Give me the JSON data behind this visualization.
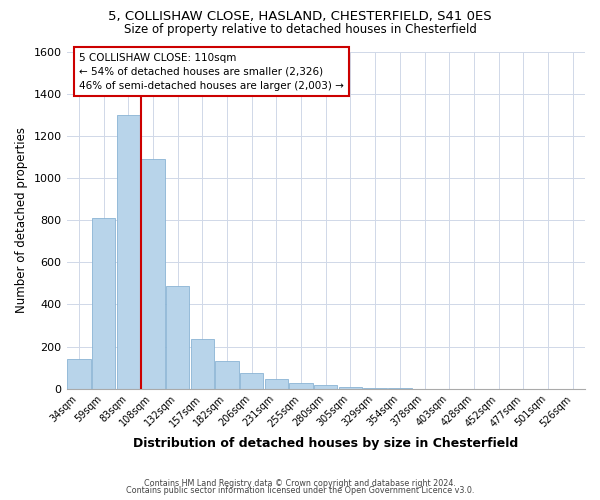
{
  "title1": "5, COLLISHAW CLOSE, HASLAND, CHESTERFIELD, S41 0ES",
  "title2": "Size of property relative to detached houses in Chesterfield",
  "xlabel": "Distribution of detached houses by size in Chesterfield",
  "ylabel": "Number of detached properties",
  "footer1": "Contains HM Land Registry data © Crown copyright and database right 2024.",
  "footer2": "Contains public sector information licensed under the Open Government Licence v3.0.",
  "bar_labels": [
    "34sqm",
    "59sqm",
    "83sqm",
    "108sqm",
    "132sqm",
    "157sqm",
    "182sqm",
    "206sqm",
    "231sqm",
    "255sqm",
    "280sqm",
    "305sqm",
    "329sqm",
    "354sqm",
    "378sqm",
    "403sqm",
    "428sqm",
    "452sqm",
    "477sqm",
    "501sqm",
    "526sqm"
  ],
  "bar_values": [
    140,
    810,
    1300,
    1090,
    490,
    235,
    130,
    75,
    48,
    28,
    18,
    8,
    3,
    2,
    1,
    0,
    0,
    0,
    0,
    0,
    0
  ],
  "bar_color": "#b8d4ea",
  "bar_edge_color": "#8ab4d4",
  "vline_pos": 2.5,
  "vline_color": "#cc0000",
  "annotation_text": "5 COLLISHAW CLOSE: 110sqm\n← 54% of detached houses are smaller (2,326)\n46% of semi-detached houses are larger (2,003) →",
  "annotation_box_color": "#ffffff",
  "annotation_box_edge_color": "#cc0000",
  "ylim": [
    0,
    1600
  ],
  "yticks": [
    0,
    200,
    400,
    600,
    800,
    1000,
    1200,
    1400,
    1600
  ],
  "background_color": "#ffffff",
  "grid_color": "#d0d8e8"
}
